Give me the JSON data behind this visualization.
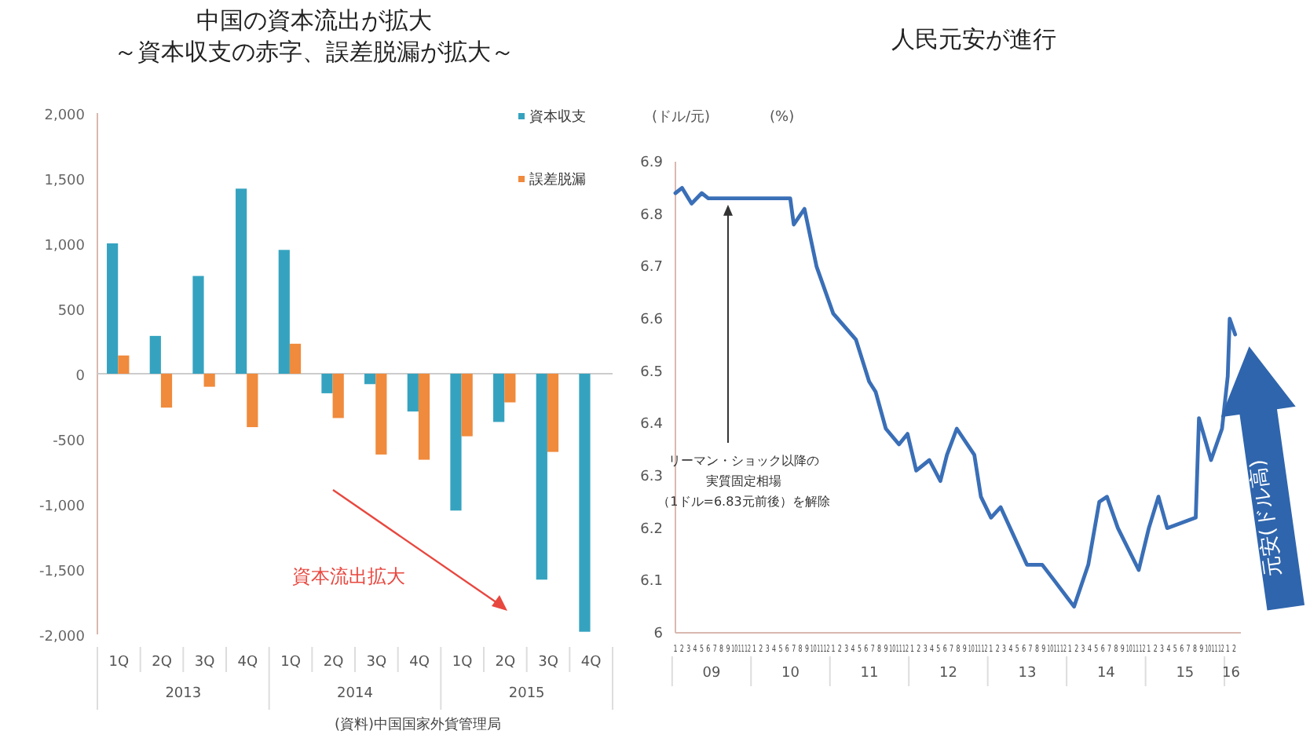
{
  "chart_data": [
    {
      "type": "bar",
      "title": "中国の資本流出が拡大",
      "subtitle": "～資本収支の赤字、誤差脱漏が拡大～",
      "categories": [
        "1Q",
        "2Q",
        "3Q",
        "4Q",
        "1Q",
        "2Q",
        "3Q",
        "4Q",
        "1Q",
        "2Q",
        "3Q",
        "4Q"
      ],
      "series": [
        {
          "name": "資本収支",
          "color": "#35a3c0",
          "values": [
            1000,
            290,
            750,
            1420,
            950,
            -150,
            -80,
            -290,
            -1050,
            -370,
            -1580,
            -1980
          ]
        },
        {
          "name": "誤差脱漏",
          "color": "#f08a3c",
          "values": [
            140,
            -260,
            -100,
            -410,
            230,
            -340,
            -620,
            -660,
            -480,
            -220,
            -600,
            null
          ]
        }
      ],
      "ylim": [
        -2000,
        2000
      ],
      "yticks": [
        {
          "value": -2000,
          "label": "-2,000"
        },
        {
          "value": -1500,
          "label": "-1,500"
        },
        {
          "value": -1000,
          "label": "-1,000"
        },
        -500,
        0,
        500,
        {
          "value": 1000,
          "label": "1,000"
        },
        {
          "value": 1500,
          "label": "1,500"
        },
        {
          "value": 2000,
          "label": "2,000"
        }
      ],
      "legend": "top right",
      "annotations": [
        "資本流出拡大",
        "2013",
        "2014",
        "2015",
        "(資料)中国国家外貨管理局"
      ]
    },
    {
      "type": "line",
      "title": "人民元安が進行",
      "ylabel": "(ドル/元)",
      "x": [
        "2009-01-01",
        "2009-02-01",
        "2009-03-15",
        "2009-05-01",
        "2009-06-01",
        "2009-08-01",
        "2009-10-01",
        "2010-01-01",
        "2010-04-01",
        "2010-06-15",
        "2010-07-01",
        "2010-08-20",
        "2010-10-15",
        "2011-01-01",
        "2011-04-15",
        "2011-06-15",
        "2011-07-15",
        "2011-09-01",
        "2011-11-01",
        "2011-12-10",
        "2012-01-20",
        "2012-03-20",
        "2012-05-10",
        "2012-06-10",
        "2012-07-25",
        "2012-10-15",
        "2012-11-15",
        "2013-01-01",
        "2013-02-15",
        "2013-06-15",
        "2013-08-25",
        "2013-10-20",
        "2014-01-20",
        "2014-03-25",
        "2014-05-15",
        "2014-06-20",
        "2014-08-10",
        "2014-11-15",
        "2015-01-01",
        "2015-02-15",
        "2015-03-25",
        "2015-08-05",
        "2015-08-20",
        "2015-10-15",
        "2015-12-05",
        "2016-01-01",
        "2016-01-10",
        "2016-02-05"
      ],
      "values": [
        6.84,
        6.85,
        6.82,
        6.84,
        6.83,
        6.83,
        6.83,
        6.83,
        6.83,
        6.83,
        6.78,
        6.81,
        6.7,
        6.61,
        6.56,
        6.48,
        6.46,
        6.39,
        6.36,
        6.38,
        6.31,
        6.33,
        6.29,
        6.34,
        6.39,
        6.34,
        6.26,
        6.22,
        6.24,
        6.13,
        6.13,
        6.1,
        6.05,
        6.13,
        6.25,
        6.26,
        6.2,
        6.12,
        6.2,
        6.26,
        6.2,
        6.22,
        6.41,
        6.33,
        6.39,
        6.49,
        6.6,
        6.57
      ],
      "color": "#3a6fb7",
      "xlim": [
        "2009-01-01",
        "2016-03-01"
      ],
      "xticks": [
        {
          "value": "2009-01",
          "label": "1"
        },
        {
          "value": "2009-02",
          "label": "2"
        },
        {
          "value": "2009-03",
          "label": "3"
        },
        {
          "value": "2009-04",
          "label": "4"
        },
        {
          "value": "2009-05",
          "label": "5"
        },
        {
          "value": "2009-06",
          "label": "6"
        },
        {
          "value": "2009-07",
          "label": "7"
        },
        {
          "value": "2009-08",
          "label": "8"
        },
        {
          "value": "2009-09",
          "label": "9"
        },
        {
          "value": "2009-10",
          "label": "10"
        },
        {
          "value": "2009-11",
          "label": "11"
        },
        {
          "value": "2009-12",
          "label": "12"
        },
        {
          "value": "2010-01",
          "label": "1"
        },
        {
          "value": "2010-02",
          "label": "2"
        },
        {
          "value": "2010-03",
          "label": "3"
        },
        {
          "value": "2010-04",
          "label": "4"
        },
        {
          "value": "2010-05",
          "label": "5"
        },
        {
          "value": "2010-06",
          "label": "6"
        },
        {
          "value": "2010-07",
          "label": "7"
        },
        {
          "value": "2010-08",
          "label": "8"
        },
        {
          "value": "2010-09",
          "label": "9"
        },
        {
          "value": "2010-10",
          "label": "10"
        },
        {
          "value": "2010-11",
          "label": "11"
        },
        {
          "value": "2010-12",
          "label": "12"
        },
        {
          "value": "2011-01",
          "label": "1"
        },
        {
          "value": "2011-02",
          "label": "2"
        },
        {
          "value": "2011-03",
          "label": "3"
        },
        {
          "value": "2011-04",
          "label": "4"
        },
        {
          "value": "2011-05",
          "label": "5"
        },
        {
          "value": "2011-06",
          "label": "6"
        },
        {
          "value": "2011-07",
          "label": "7"
        },
        {
          "value": "2011-08",
          "label": "8"
        },
        {
          "value": "2011-09",
          "label": "9"
        },
        {
          "value": "2011-10",
          "label": "10"
        },
        {
          "value": "2011-11",
          "label": "11"
        },
        {
          "value": "2011-12",
          "label": "12"
        },
        {
          "value": "2012-01",
          "label": "1"
        },
        {
          "value": "2012-02",
          "label": "2"
        },
        {
          "value": "2012-03",
          "label": "3"
        },
        {
          "value": "2012-04",
          "label": "4"
        },
        {
          "value": "2012-05",
          "label": "5"
        },
        {
          "value": "2012-06",
          "label": "6"
        },
        {
          "value": "2012-07",
          "label": "7"
        },
        {
          "value": "2012-08",
          "label": "8"
        },
        {
          "value": "2012-09",
          "label": "9"
        },
        {
          "value": "2012-10",
          "label": "10"
        },
        {
          "value": "2012-11",
          "label": "11"
        },
        {
          "value": "2012-12",
          "label": "12"
        },
        {
          "value": "2013-01",
          "label": "1"
        },
        {
          "value": "2013-02",
          "label": "2"
        },
        {
          "value": "2013-03",
          "label": "3"
        },
        {
          "value": "2013-04",
          "label": "4"
        },
        {
          "value": "2013-05",
          "label": "5"
        },
        {
          "value": "2013-06",
          "label": "6"
        },
        {
          "value": "2013-07",
          "label": "7"
        },
        {
          "value": "2013-08",
          "label": "8"
        },
        {
          "value": "2013-09",
          "label": "9"
        },
        {
          "value": "2013-10",
          "label": "10"
        },
        {
          "value": "2013-11",
          "label": "11"
        },
        {
          "value": "2013-12",
          "label": "12"
        },
        {
          "value": "2014-01",
          "label": "1"
        },
        {
          "value": "2014-02",
          "label": "2"
        },
        {
          "value": "2014-03",
          "label": "3"
        },
        {
          "value": "2014-04",
          "label": "4"
        },
        {
          "value": "2014-05",
          "label": "5"
        },
        {
          "value": "2014-06",
          "label": "6"
        },
        {
          "value": "2014-07",
          "label": "7"
        },
        {
          "value": "2014-08",
          "label": "8"
        },
        {
          "value": "2014-09",
          "label": "9"
        },
        {
          "value": "2014-10",
          "label": "10"
        },
        {
          "value": "2014-11",
          "label": "11"
        },
        {
          "value": "2014-12",
          "label": "12"
        },
        {
          "value": "2015-01",
          "label": "1"
        },
        {
          "value": "2015-02",
          "label": "2"
        },
        {
          "value": "2015-03",
          "label": "3"
        },
        {
          "value": "2015-04",
          "label": "4"
        },
        {
          "value": "2015-05",
          "label": "5"
        },
        {
          "value": "2015-06",
          "label": "6"
        },
        {
          "value": "2015-07",
          "label": "7"
        },
        {
          "value": "2015-08",
          "label": "8"
        },
        {
          "value": "2015-09",
          "label": "9"
        },
        {
          "value": "2015-10",
          "label": "10"
        },
        {
          "value": "2015-11",
          "label": "11"
        },
        {
          "value": "2015-12",
          "label": "12"
        },
        {
          "value": "2016-01",
          "label": "1"
        },
        {
          "value": "2016-02",
          "label": "2"
        }
      ],
      "ylim": [
        6,
        6.9
      ],
      "yticks": [
        6,
        6.1,
        6.2,
        6.3,
        6.4,
        6.5,
        6.6,
        6.7,
        6.8,
        6.9
      ],
      "annotations": [
        "(%)",
        {
          "text": "リーマン・ショック以降の",
          "x": "2009-09",
          "y": 6.83
        },
        "実質固定相場",
        "（1ドル=6.83元前後）を解除",
        "元安(ドル高)",
        "09",
        "10",
        "11",
        "12",
        "13",
        "14",
        "15",
        "16"
      ]
    }
  ]
}
